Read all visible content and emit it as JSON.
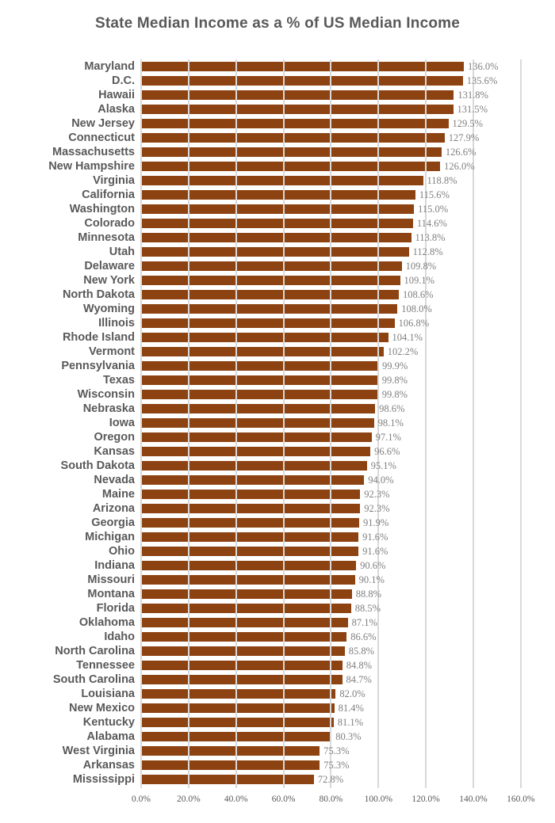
{
  "title": "State Median Income as a % of US Median Income",
  "colors": {
    "bar": "#8D4311",
    "gridline": "#d9d9d9",
    "title_text": "#595959",
    "category_text": "#595959",
    "value_text": "#7f7f7f",
    "axis_text": "#595959",
    "background": "#ffffff"
  },
  "chart_data": {
    "type": "bar",
    "orientation": "horizontal",
    "title": "State Median Income as a % of US Median Income",
    "categories": [
      "Maryland",
      "D.C.",
      "Hawaii",
      "Alaska",
      "New Jersey",
      "Connecticut",
      "Massachusetts",
      "New Hampshire",
      "Virginia",
      "California",
      "Washington",
      "Colorado",
      "Minnesota",
      "Utah",
      "Delaware",
      "New York",
      "North Dakota",
      "Wyoming",
      "Illinois",
      "Rhode Island",
      "Vermont",
      "Pennsylvania",
      "Texas",
      "Wisconsin",
      "Nebraska",
      "Iowa",
      "Oregon",
      "Kansas",
      "South Dakota",
      "Nevada",
      "Maine",
      "Arizona",
      "Georgia",
      "Michigan",
      "Ohio",
      "Indiana",
      "Missouri",
      "Montana",
      "Florida",
      "Oklahoma",
      "Idaho",
      "North Carolina",
      "Tennessee",
      "South Carolina",
      "Louisiana",
      "New Mexico",
      "Kentucky",
      "Alabama",
      "West Virginia",
      "Arkansas",
      "Mississippi"
    ],
    "values": [
      136.0,
      135.6,
      131.8,
      131.5,
      129.5,
      127.9,
      126.6,
      126.0,
      118.8,
      115.6,
      115.0,
      114.6,
      113.8,
      112.8,
      109.8,
      109.1,
      108.6,
      108.0,
      106.8,
      104.1,
      102.2,
      99.9,
      99.8,
      99.8,
      98.6,
      98.1,
      97.1,
      96.6,
      95.1,
      94.0,
      92.3,
      92.3,
      91.9,
      91.6,
      91.6,
      90.6,
      90.1,
      88.8,
      88.5,
      87.1,
      86.6,
      85.8,
      84.8,
      84.7,
      82.0,
      81.4,
      81.1,
      80.3,
      75.3,
      75.3,
      72.8
    ],
    "value_labels": [
      "136.0%",
      "135.6%",
      "131.8%",
      "131.5%",
      "129.5%",
      "127.9%",
      "126.6%",
      "126.0%",
      "118.8%",
      "115.6%",
      "115.0%",
      "114.6%",
      "113.8%",
      "112.8%",
      "109.8%",
      "109.1%",
      "108.6%",
      "108.0%",
      "106.8%",
      "104.1%",
      "102.2%",
      "99.9%",
      "99.8%",
      "99.8%",
      "98.6%",
      "98.1%",
      "97.1%",
      "96.6%",
      "95.1%",
      "94.0%",
      "92.3%",
      "92.3%",
      "91.9%",
      "91.6%",
      "91.6%",
      "90.6%",
      "90.1%",
      "88.8%",
      "88.5%",
      "87.1%",
      "86.6%",
      "85.8%",
      "84.8%",
      "84.7%",
      "82.0%",
      "81.4%",
      "81.1%",
      "80.3%",
      "75.3%",
      "75.3%",
      "72.8%"
    ],
    "xlabel": "",
    "ylabel": "",
    "x_ticks": [
      "0.0%",
      "20.0%",
      "40.0%",
      "60.0%",
      "80.0%",
      "100.0%",
      "120.0%",
      "140.0%",
      "160.0%"
    ],
    "x_tick_values": [
      0,
      20,
      40,
      60,
      80,
      100,
      120,
      140,
      160
    ],
    "xlim": [
      0,
      160
    ],
    "grid": true,
    "gridlines_over_bars": true,
    "legend": false,
    "data_labels": true
  }
}
